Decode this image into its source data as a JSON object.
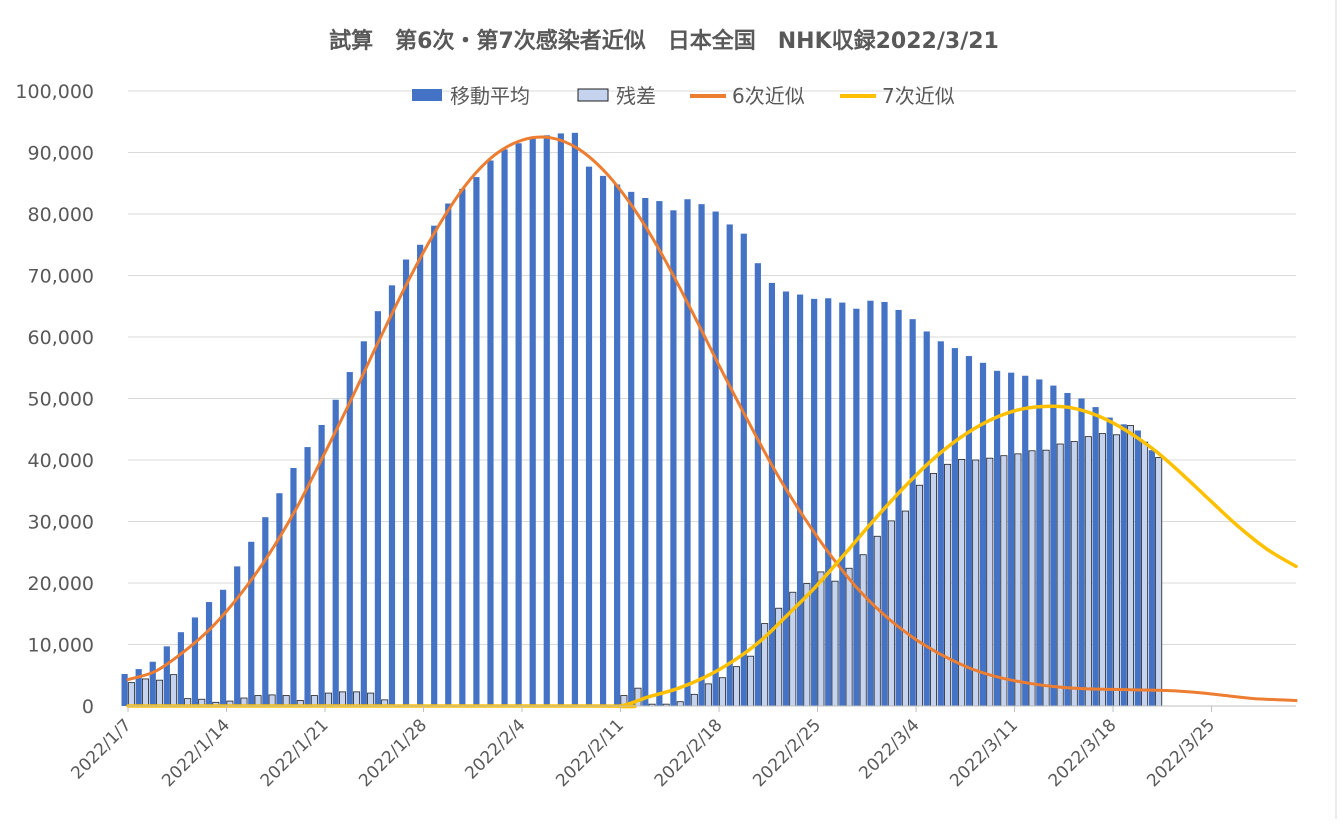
{
  "chart_data": {
    "type": "bar",
    "title": "試算　第6次・第7次感染者近似　日本全国　NHK収録2022/3/21",
    "xlabel": "",
    "ylabel": "",
    "ylim": [
      0,
      100000
    ],
    "y_ticks": [
      "0",
      "10,000",
      "20,000",
      "30,000",
      "40,000",
      "50,000",
      "60,000",
      "70,000",
      "80,000",
      "90,000",
      "100,000"
    ],
    "x_range": [
      "2022/1/7",
      "2022/3/31"
    ],
    "x_tick_labels": [
      "2022/1/7",
      "2022/1/14",
      "2022/1/21",
      "2022/1/28",
      "2022/2/4",
      "2022/2/11",
      "2022/2/18",
      "2022/2/25",
      "2022/3/4",
      "2022/3/11",
      "2022/3/18",
      "2022/3/25"
    ],
    "grid": true,
    "legend_position": "top",
    "legend": [
      "移動平均",
      "残差",
      "6次近似",
      "7次近似"
    ],
    "colors": {
      "moving_avg": "#4472C4",
      "residual_fill": "#C5D3EE",
      "residual_stroke": "#1F1F1F",
      "curve6": "#ED7D31",
      "curve7": "#FFC000",
      "grid": "#D9D9D9",
      "text": "#595959"
    },
    "dates": [
      "2022/1/7",
      "2022/1/8",
      "2022/1/9",
      "2022/1/10",
      "2022/1/11",
      "2022/1/12",
      "2022/1/13",
      "2022/1/14",
      "2022/1/15",
      "2022/1/16",
      "2022/1/17",
      "2022/1/18",
      "2022/1/19",
      "2022/1/20",
      "2022/1/21",
      "2022/1/22",
      "2022/1/23",
      "2022/1/24",
      "2022/1/25",
      "2022/1/26",
      "2022/1/27",
      "2022/1/28",
      "2022/1/29",
      "2022/1/30",
      "2022/1/31",
      "2022/2/1",
      "2022/2/2",
      "2022/2/3",
      "2022/2/4",
      "2022/2/5",
      "2022/2/6",
      "2022/2/7",
      "2022/2/8",
      "2022/2/9",
      "2022/2/10",
      "2022/2/11",
      "2022/2/12",
      "2022/2/13",
      "2022/2/14",
      "2022/2/15",
      "2022/2/16",
      "2022/2/17",
      "2022/2/18",
      "2022/2/19",
      "2022/2/20",
      "2022/2/21",
      "2022/2/22",
      "2022/2/23",
      "2022/2/24",
      "2022/2/25",
      "2022/2/26",
      "2022/2/27",
      "2022/2/28",
      "2022/3/1",
      "2022/3/2",
      "2022/3/3",
      "2022/3/4",
      "2022/3/5",
      "2022/3/6",
      "2022/3/7",
      "2022/3/8",
      "2022/3/9",
      "2022/3/10",
      "2022/3/11",
      "2022/3/12",
      "2022/3/13",
      "2022/3/14",
      "2022/3/15",
      "2022/3/16",
      "2022/3/17",
      "2022/3/18",
      "2022/3/19",
      "2022/3/20",
      "2022/3/21"
    ],
    "series": [
      {
        "name": "移動平均",
        "kind": "bar",
        "values": [
          5200,
          6000,
          7200,
          9700,
          12000,
          14400,
          16900,
          18900,
          22700,
          26700,
          30700,
          34600,
          38700,
          42100,
          45700,
          49800,
          54300,
          59300,
          64200,
          68400,
          72600,
          75000,
          78100,
          81700,
          84100,
          86000,
          88700,
          90500,
          91500,
          92500,
          92800,
          93100,
          93200,
          87700,
          86200,
          84800,
          83600,
          82600,
          82100,
          80600,
          82400,
          81600,
          80400,
          78300,
          76800,
          72000,
          68800,
          67400,
          66900,
          66200,
          66300,
          65600,
          64600,
          65900,
          65700,
          64400,
          62900,
          60900,
          59300,
          58200,
          56900,
          55800,
          54500,
          54200,
          53700,
          53100,
          52100,
          50900,
          50000,
          48600,
          46900,
          45800,
          44800,
          41600
        ]
      },
      {
        "name": "残差",
        "kind": "bar",
        "values": [
          3800,
          4400,
          4200,
          5100,
          1200,
          1100,
          600,
          800,
          1300,
          1700,
          1800,
          1700,
          900,
          1700,
          2100,
          2300,
          2300,
          2100,
          1000,
          0,
          0,
          0,
          0,
          0,
          0,
          0,
          0,
          0,
          0,
          0,
          0,
          0,
          0,
          0,
          0,
          1700,
          2900,
          300,
          300,
          700,
          1900,
          3600,
          4600,
          6400,
          8100,
          13400,
          15900,
          18500,
          19900,
          21800,
          20300,
          22400,
          24600,
          27600,
          30100,
          31700,
          35900,
          37800,
          39300,
          40100,
          40000,
          40300,
          40700,
          41000,
          41500,
          41600,
          42600,
          43000,
          43800,
          44300,
          44100,
          45600,
          42900,
          40400
        ]
      },
      {
        "name": "6次近似",
        "kind": "line",
        "points": [
          [
            "2022/1/7",
            4300
          ],
          [
            "2022/1/9",
            5700
          ],
          [
            "2022/1/11",
            8900
          ],
          [
            "2022/1/13",
            12900
          ],
          [
            "2022/1/15",
            18200
          ],
          [
            "2022/1/17",
            24600
          ],
          [
            "2022/1/19",
            32300
          ],
          [
            "2022/1/21",
            41200
          ],
          [
            "2022/1/23",
            50500
          ],
          [
            "2022/1/25",
            60200
          ],
          [
            "2022/1/27",
            69500
          ],
          [
            "2022/1/29",
            77800
          ],
          [
            "2022/1/31",
            84700
          ],
          [
            "2022/2/2",
            89500
          ],
          [
            "2022/2/4",
            92000
          ],
          [
            "2022/2/6",
            92400
          ],
          [
            "2022/2/8",
            90600
          ],
          [
            "2022/2/10",
            86600
          ],
          [
            "2022/2/12",
            80700
          ],
          [
            "2022/2/14",
            73200
          ],
          [
            "2022/2/16",
            64500
          ],
          [
            "2022/2/18",
            55400
          ],
          [
            "2022/2/20",
            46600
          ],
          [
            "2022/2/22",
            38200
          ],
          [
            "2022/2/24",
            30800
          ],
          [
            "2022/2/26",
            24300
          ],
          [
            "2022/2/28",
            18700
          ],
          [
            "2022/3/2",
            14300
          ],
          [
            "2022/3/4",
            10800
          ],
          [
            "2022/3/6",
            8100
          ],
          [
            "2022/3/8",
            6000
          ],
          [
            "2022/3/10",
            4600
          ],
          [
            "2022/3/12",
            3700
          ],
          [
            "2022/3/14",
            3100
          ],
          [
            "2022/3/16",
            2800
          ],
          [
            "2022/3/18",
            2700
          ],
          [
            "2022/3/20",
            2600
          ],
          [
            "2022/3/22",
            2500
          ],
          [
            "2022/3/24",
            2200
          ],
          [
            "2022/3/26",
            1700
          ],
          [
            "2022/3/28",
            1200
          ],
          [
            "2022/3/30",
            1000
          ],
          [
            "2022/3/31",
            900
          ]
        ]
      },
      {
        "name": "7次近似",
        "kind": "line",
        "points": [
          [
            "2022/1/7",
            0
          ],
          [
            "2022/2/9",
            0
          ],
          [
            "2022/2/11",
            0
          ],
          [
            "2022/2/13",
            1500
          ],
          [
            "2022/2/15",
            2800
          ],
          [
            "2022/2/17",
            4700
          ],
          [
            "2022/2/19",
            7300
          ],
          [
            "2022/2/21",
            10700
          ],
          [
            "2022/2/23",
            15100
          ],
          [
            "2022/2/25",
            19700
          ],
          [
            "2022/2/27",
            24900
          ],
          [
            "2022/3/1",
            30200
          ],
          [
            "2022/3/3",
            35200
          ],
          [
            "2022/3/5",
            39700
          ],
          [
            "2022/3/7",
            43400
          ],
          [
            "2022/3/9",
            46200
          ],
          [
            "2022/3/11",
            48000
          ],
          [
            "2022/3/13",
            48700
          ],
          [
            "2022/3/15",
            48500
          ],
          [
            "2022/3/17",
            47100
          ],
          [
            "2022/3/19",
            44700
          ],
          [
            "2022/3/21",
            41500
          ],
          [
            "2022/3/23",
            37500
          ],
          [
            "2022/3/25",
            33200
          ],
          [
            "2022/3/27",
            29000
          ],
          [
            "2022/3/29",
            25400
          ],
          [
            "2022/3/31",
            22700
          ]
        ]
      }
    ]
  }
}
